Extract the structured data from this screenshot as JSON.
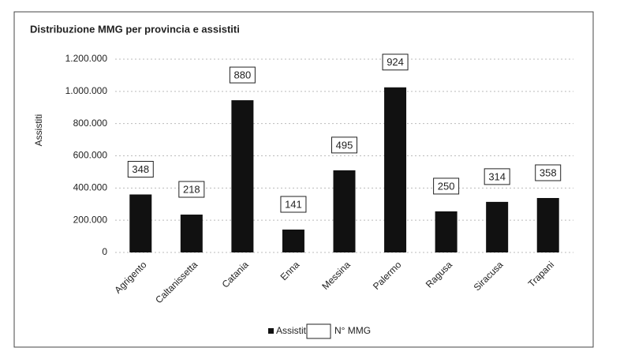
{
  "chart_data": {
    "type": "bar",
    "title": "Distribuzione MMG per provincia e assistiti",
    "y_label": "Assistiti",
    "categories": [
      "Agrigento",
      "Caltanissetta",
      "Catania",
      "Enna",
      "Messina",
      "Palermo",
      "Ragusa",
      "Siracusa",
      "Trapani"
    ],
    "series": [
      {
        "name": "Assistiti",
        "color": "#111111",
        "values": [
          360000,
          235000,
          945000,
          142000,
          510000,
          1025000,
          255000,
          314000,
          338000
        ]
      },
      {
        "name": "N° MMG",
        "color": "#ffffff",
        "values": [
          348,
          218,
          880,
          141,
          495,
          924,
          250,
          314,
          358
        ]
      }
    ],
    "ylim": [
      0,
      1200000
    ],
    "yticks": [
      0,
      {
        "value": 200000,
        "label": "200.000"
      },
      {
        "value": 400000,
        "label": "400.000"
      },
      {
        "value": 600000,
        "label": "600.000"
      },
      {
        "value": 800000,
        "label": "800.000"
      },
      {
        "value": 1000000,
        "label": "1.000.000"
      },
      {
        "value": 1200000,
        "label": "1.200.000"
      }
    ],
    "grid": true,
    "legend": "bottom"
  }
}
